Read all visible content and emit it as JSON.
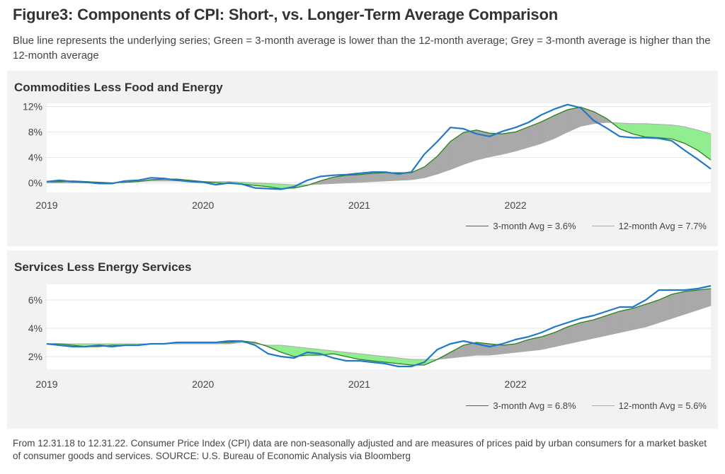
{
  "title": "Figure3: Components of CPI: Short-, vs. Longer-Term Average Comparison",
  "subtitle": "Blue line represents the underlying series; Green = 3-month average is lower than the 12-month average; Grey = 3-month average is higher than the 12-month average",
  "footer": "From 12.31.18 to 12.31.22. Consumer Price Index (CPI) data are non-seasonally adjusted and are measures of prices paid by urban consumers for a market basket of consumer goods and services. SOURCE: U.S. Bureau of Economic Analysis via Bloomberg",
  "colors": {
    "series": "#1f78c8",
    "avg3": "#2e7d1f",
    "avg12": "#aaaaaa",
    "green_fill": "#90ee90",
    "grey_fill": "#a9a9a9"
  },
  "chart_data": [
    {
      "type": "line",
      "title": "Commodities Less Food and Energy",
      "x_start": "2019-01",
      "x_ticks": [
        "2019",
        "2020",
        "2021",
        "2022"
      ],
      "y_ticks": [
        "0%",
        "4%",
        "8%",
        "12%"
      ],
      "ylim": [
        -1.5,
        12.5
      ],
      "yticks_values": [
        0,
        4,
        8,
        12
      ],
      "legend": {
        "avg3": "3-month Avg = 3.6%",
        "avg12": "12-month Avg = 7.7%"
      },
      "series": [
        {
          "name": "Underlying series",
          "values": [
            0.2,
            0.4,
            0.2,
            0.1,
            -0.1,
            -0.1,
            0.3,
            0.4,
            0.8,
            0.7,
            0.4,
            0.2,
            0.1,
            -0.3,
            0.0,
            -0.2,
            -0.8,
            -0.9,
            -1.0,
            -0.6,
            0.4,
            1.0,
            1.2,
            1.3,
            1.5,
            1.7,
            1.7,
            1.4,
            1.7,
            4.5,
            6.5,
            8.7,
            8.5,
            7.7,
            7.3,
            8.1,
            8.7,
            9.5,
            10.7,
            11.6,
            12.3,
            11.8,
            9.8,
            8.6,
            7.3,
            7.1,
            7.1,
            7.0,
            6.6,
            5.1,
            3.7,
            2.2
          ]
        },
        {
          "name": "3-month Avg",
          "values": [
            0.2,
            0.2,
            0.3,
            0.2,
            0.1,
            0.0,
            0.1,
            0.2,
            0.5,
            0.6,
            0.6,
            0.4,
            0.2,
            0.0,
            -0.1,
            -0.2,
            -0.4,
            -0.6,
            -0.9,
            -0.8,
            -0.4,
            0.3,
            0.9,
            1.2,
            1.3,
            1.5,
            1.6,
            1.6,
            1.6,
            2.5,
            4.2,
            6.5,
            7.9,
            8.3,
            7.8,
            7.7,
            8.0,
            8.8,
            9.6,
            10.6,
            11.5,
            11.9,
            11.2,
            10.1,
            8.5,
            7.7,
            7.2,
            7.1,
            6.9,
            6.2,
            5.1,
            3.6
          ]
        },
        {
          "name": "12-month Avg",
          "values": [
            0.0,
            0.0,
            0.0,
            0.0,
            0.0,
            0.0,
            0.1,
            0.2,
            0.3,
            0.3,
            0.3,
            0.3,
            0.2,
            0.2,
            0.2,
            0.1,
            0.0,
            -0.1,
            -0.2,
            -0.3,
            -0.3,
            -0.2,
            -0.1,
            0.0,
            0.1,
            0.2,
            0.3,
            0.4,
            0.5,
            0.8,
            1.4,
            2.1,
            2.9,
            3.6,
            4.1,
            4.5,
            5.0,
            5.6,
            6.2,
            7.0,
            8.0,
            8.9,
            9.3,
            9.5,
            9.4,
            9.3,
            9.3,
            9.2,
            9.1,
            8.8,
            8.3,
            7.7
          ]
        }
      ]
    },
    {
      "type": "line",
      "title": "Services Less Energy Services",
      "x_start": "2019-01",
      "x_ticks": [
        "2019",
        "2020",
        "2021",
        "2022"
      ],
      "y_ticks": [
        "2%",
        "4%",
        "6%"
      ],
      "ylim": [
        1.1,
        7.1
      ],
      "yticks_values": [
        2,
        4,
        6
      ],
      "legend": {
        "avg3": "3-month Avg = 6.8%",
        "avg12": "12-month Avg = 5.6%"
      },
      "series": [
        {
          "name": "Underlying series",
          "values": [
            2.9,
            2.8,
            2.7,
            2.7,
            2.8,
            2.7,
            2.8,
            2.8,
            2.9,
            2.9,
            3.0,
            3.0,
            3.0,
            3.0,
            3.1,
            3.1,
            2.8,
            2.2,
            2.0,
            1.9,
            2.3,
            2.2,
            1.9,
            1.7,
            1.7,
            1.6,
            1.5,
            1.3,
            1.3,
            1.6,
            2.5,
            2.9,
            3.1,
            2.9,
            2.7,
            2.9,
            3.2,
            3.4,
            3.7,
            4.1,
            4.4,
            4.7,
            4.9,
            5.2,
            5.5,
            5.5,
            6.0,
            6.7,
            6.7,
            6.7,
            6.8,
            7.0
          ]
        },
        {
          "name": "3-month Avg",
          "values": [
            2.9,
            2.9,
            2.8,
            2.7,
            2.7,
            2.8,
            2.8,
            2.8,
            2.9,
            2.9,
            3.0,
            3.0,
            3.0,
            3.0,
            3.0,
            3.1,
            3.0,
            2.7,
            2.3,
            2.0,
            2.1,
            2.1,
            2.2,
            2.0,
            1.8,
            1.7,
            1.6,
            1.5,
            1.4,
            1.4,
            1.8,
            2.3,
            2.8,
            3.0,
            2.9,
            2.8,
            2.9,
            3.2,
            3.4,
            3.7,
            4.1,
            4.4,
            4.6,
            4.9,
            5.2,
            5.4,
            5.7,
            6.0,
            6.4,
            6.6,
            6.7,
            6.8
          ]
        },
        {
          "name": "12-month Avg",
          "values": [
            2.9,
            2.9,
            2.9,
            2.9,
            2.9,
            2.9,
            2.9,
            2.9,
            2.9,
            2.9,
            2.9,
            2.9,
            2.9,
            2.9,
            2.9,
            3.0,
            2.9,
            2.8,
            2.8,
            2.7,
            2.6,
            2.5,
            2.4,
            2.3,
            2.2,
            2.1,
            2.0,
            1.9,
            1.8,
            1.8,
            1.8,
            1.9,
            2.0,
            2.1,
            2.1,
            2.2,
            2.3,
            2.4,
            2.5,
            2.7,
            2.9,
            3.1,
            3.3,
            3.5,
            3.7,
            3.9,
            4.1,
            4.4,
            4.7,
            5.0,
            5.3,
            5.6
          ]
        }
      ]
    }
  ]
}
